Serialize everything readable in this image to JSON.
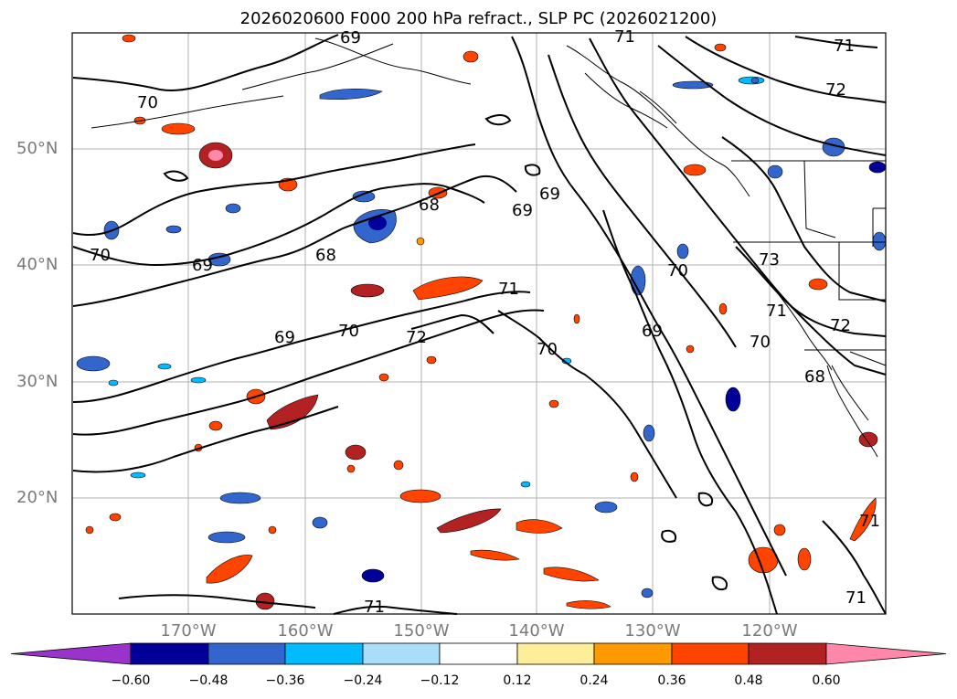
{
  "title": "2026020600 F000 200 hPa refract., SLP PC (2026021200)",
  "lat_labels": [
    "50°N",
    "40°N",
    "30°N",
    "20°N"
  ],
  "lon_labels": [
    "170°W",
    "160°W",
    "150°W",
    "140°W",
    "130°W",
    "120°W"
  ],
  "contour_labels": [
    "69",
    "71",
    "71",
    "72",
    "70",
    "69",
    "69",
    "68",
    "68",
    "70",
    "69",
    "70",
    "69",
    "70",
    "72",
    "71",
    "70",
    "70",
    "73",
    "71",
    "72",
    "69",
    "68",
    "71",
    "71",
    "71"
  ],
  "colorbar": {
    "ticks": [
      "−0.60",
      "−0.48",
      "−0.36",
      "−0.24",
      "−0.12",
      "0.12",
      "0.24",
      "0.36",
      "0.48",
      "0.60"
    ],
    "colors": [
      "#9933cc",
      "#000099",
      "#3366cc",
      "#00bbff",
      "#aaddf8",
      "#ffffff",
      "#ffee99",
      "#ff9900",
      "#ff4400",
      "#b22222",
      "#ff88aa"
    ]
  },
  "legend": {
    "anomaly_palette": {
      "strong_negative": "#000099",
      "negative": "#3366cc",
      "weak_negative": "#00bbff",
      "weak_positive": "#ffee99",
      "positive": "#ff9900",
      "strong_positive": "#ff4400",
      "very_strong_positive": "#b22222",
      "extreme_positive": "#ff88aa"
    }
  }
}
